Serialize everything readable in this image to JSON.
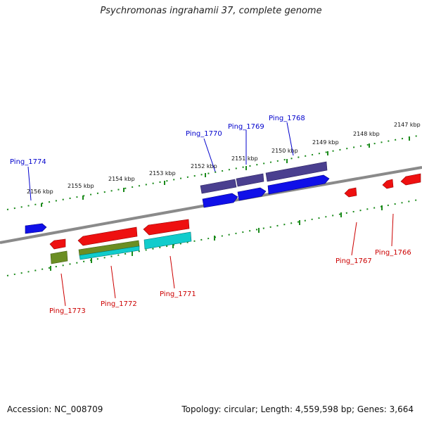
{
  "title": "Psychromonas ingrahamii 37, complete genome",
  "footer": {
    "accession": "Accession: NC_008709",
    "topology": "Topology: circular; Length: 4,559,598 bp; Genes: 3,664"
  },
  "colors": {
    "background": "#ffffff",
    "backbone": "#888888",
    "tick": "#1a8a1a",
    "top_label": "#0000cc",
    "bottom_label": "#cc0000",
    "gene_blue": "#0000ee",
    "gene_purple": "#4a3f8f",
    "gene_red": "#ee0000",
    "gene_cyan": "#11cccc",
    "gene_olive": "#6b8e23"
  },
  "scale_labels": [
    "2156 kbp",
    "2155 kbp",
    "2154 kbp",
    "2153 kbp",
    "2152 kbp",
    "2151 kbp",
    "2150 kbp",
    "2149 kbp",
    "2148 kbp",
    "2147 kbp"
  ],
  "top_labels": [
    "Ping_1774",
    "Ping_1770",
    "Ping_1769",
    "Ping_1768"
  ],
  "bottom_labels": [
    "Ping_1773",
    "Ping_1772",
    "Ping_1771",
    "Ping_1767",
    "Ping_1766"
  ]
}
